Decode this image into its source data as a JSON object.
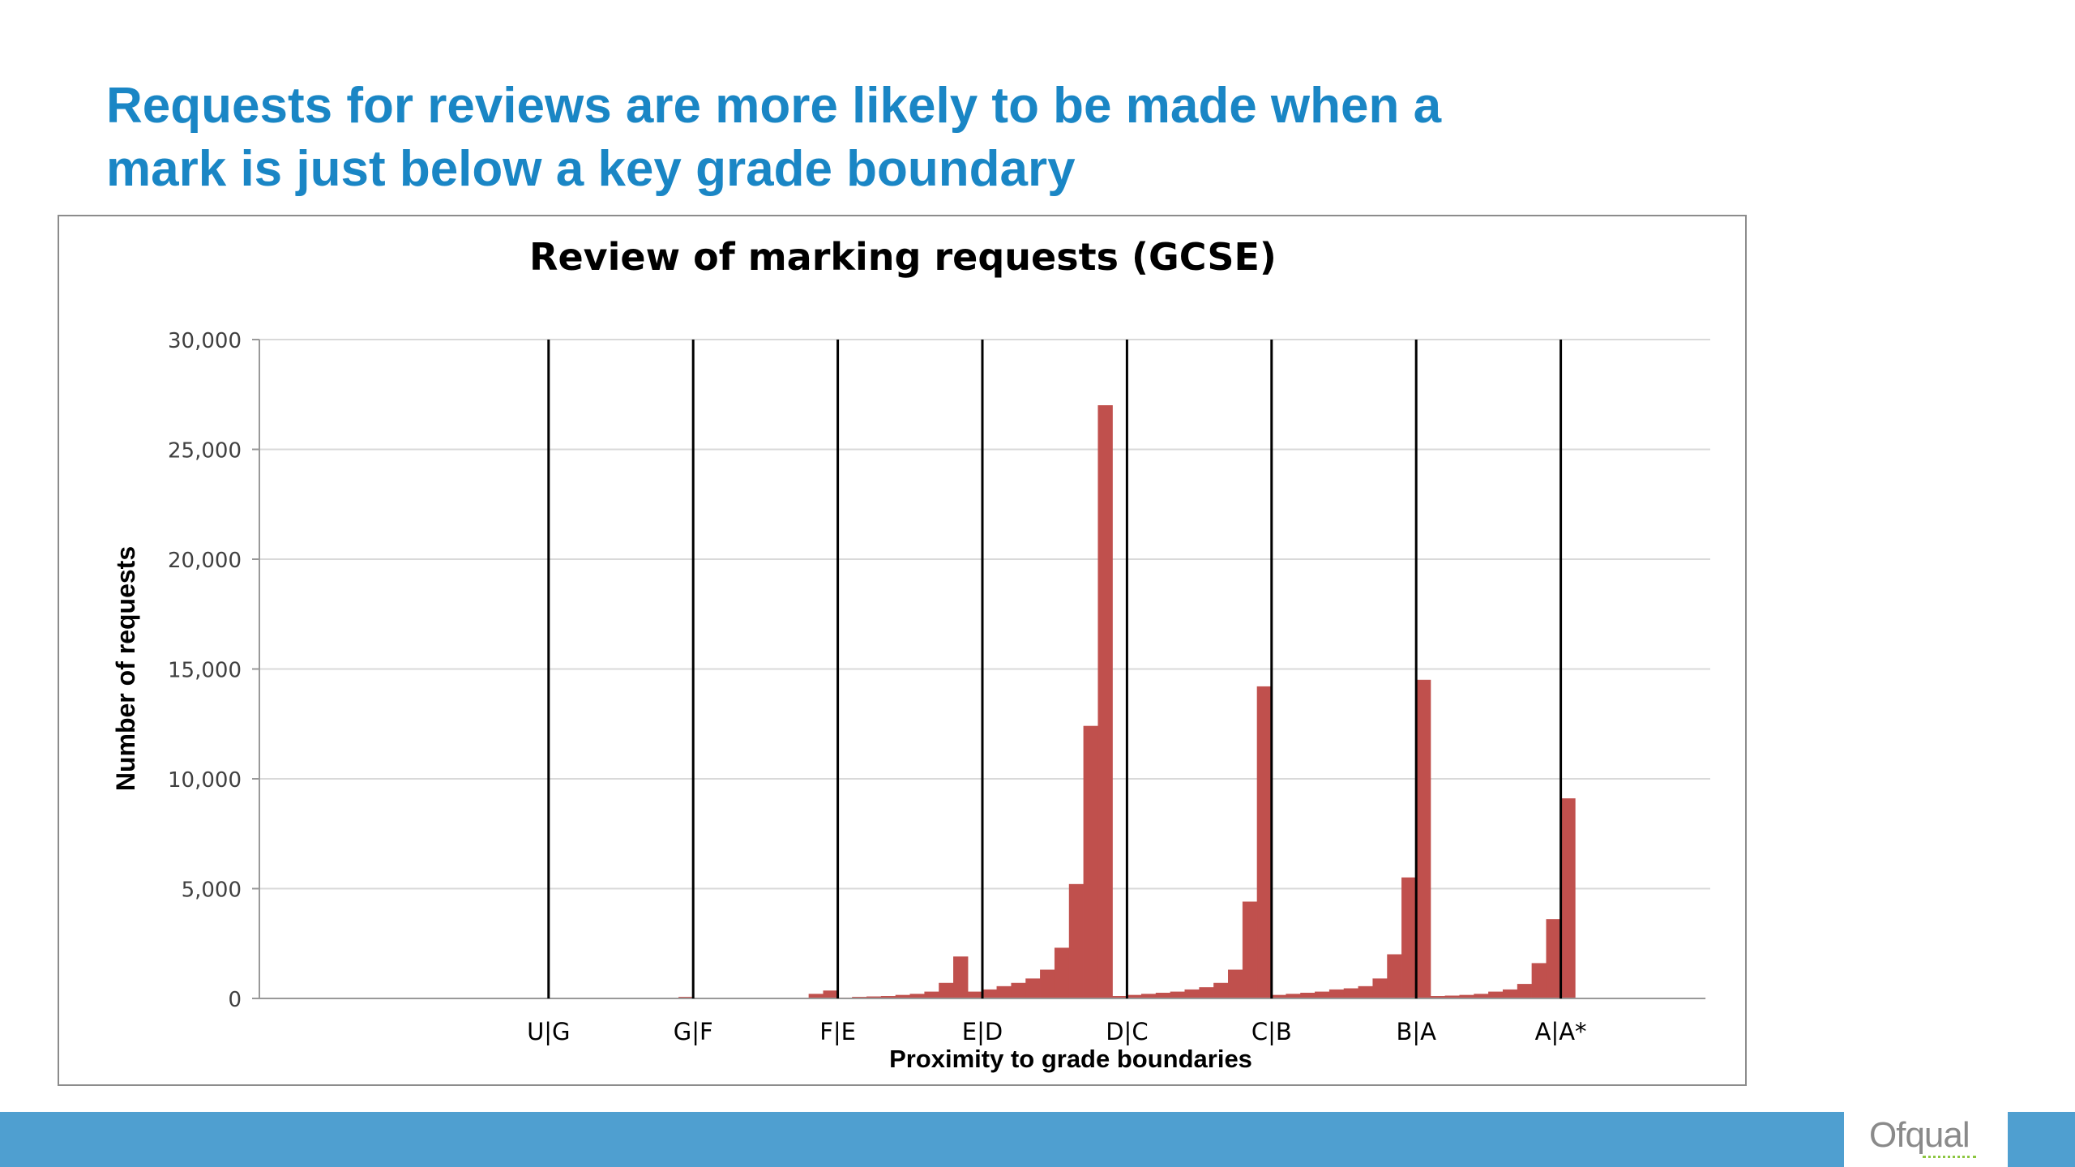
{
  "slide": {
    "title_lines": [
      "Requests for reviews are more likely to be made when a",
      "mark is just below a key grade boundary"
    ],
    "title_color": "#1a86c5",
    "footer_color": "#4f9fd0",
    "logo_text": "Ofqual",
    "logo_accent_color": "#8cc63f"
  },
  "chart_data": {
    "type": "bar",
    "title": "Review of marking requests (GCSE)",
    "xlabel": "Proximity to grade boundaries",
    "ylabel": "Number of requests",
    "ylim": [
      0,
      30000
    ],
    "yticks": [
      0,
      5000,
      10000,
      15000,
      20000,
      25000,
      30000
    ],
    "ytick_labels": [
      "0",
      "5,000",
      "10,000",
      "15,000",
      "20,000",
      "25,000",
      "30,000"
    ],
    "grid": true,
    "bar_color": "#c0504d",
    "boundary_line_color": "#000000",
    "boundary_labels": [
      "U|G",
      "G|F",
      "F|E",
      "E|D",
      "D|C",
      "C|B",
      "B|A",
      "A|A*"
    ],
    "boundary_after_bar": [
      20,
      30,
      40,
      50,
      60,
      70,
      80,
      90
    ],
    "values": [
      20,
      20,
      5,
      5,
      5,
      5,
      5,
      5,
      5,
      5,
      10,
      15,
      15,
      15,
      15,
      15,
      15,
      15,
      15,
      15,
      10,
      10,
      10,
      10,
      10,
      10,
      10,
      10,
      10,
      60,
      10,
      10,
      10,
      10,
      10,
      10,
      10,
      10,
      200,
      350,
      30,
      60,
      80,
      100,
      150,
      200,
      300,
      700,
      1900,
      300,
      400,
      550,
      700,
      900,
      1300,
      2300,
      5200,
      12400,
      27000,
      100,
      150,
      200,
      250,
      300,
      400,
      500,
      700,
      1300,
      4400,
      14200,
      150,
      200,
      250,
      300,
      400,
      450,
      550,
      900,
      2000,
      5500,
      14500,
      100,
      120,
      150,
      200,
      300,
      400,
      650,
      1600,
      3600,
      9100,
      10,
      10,
      10,
      10,
      10,
      10,
      10,
      10,
      10
    ]
  }
}
